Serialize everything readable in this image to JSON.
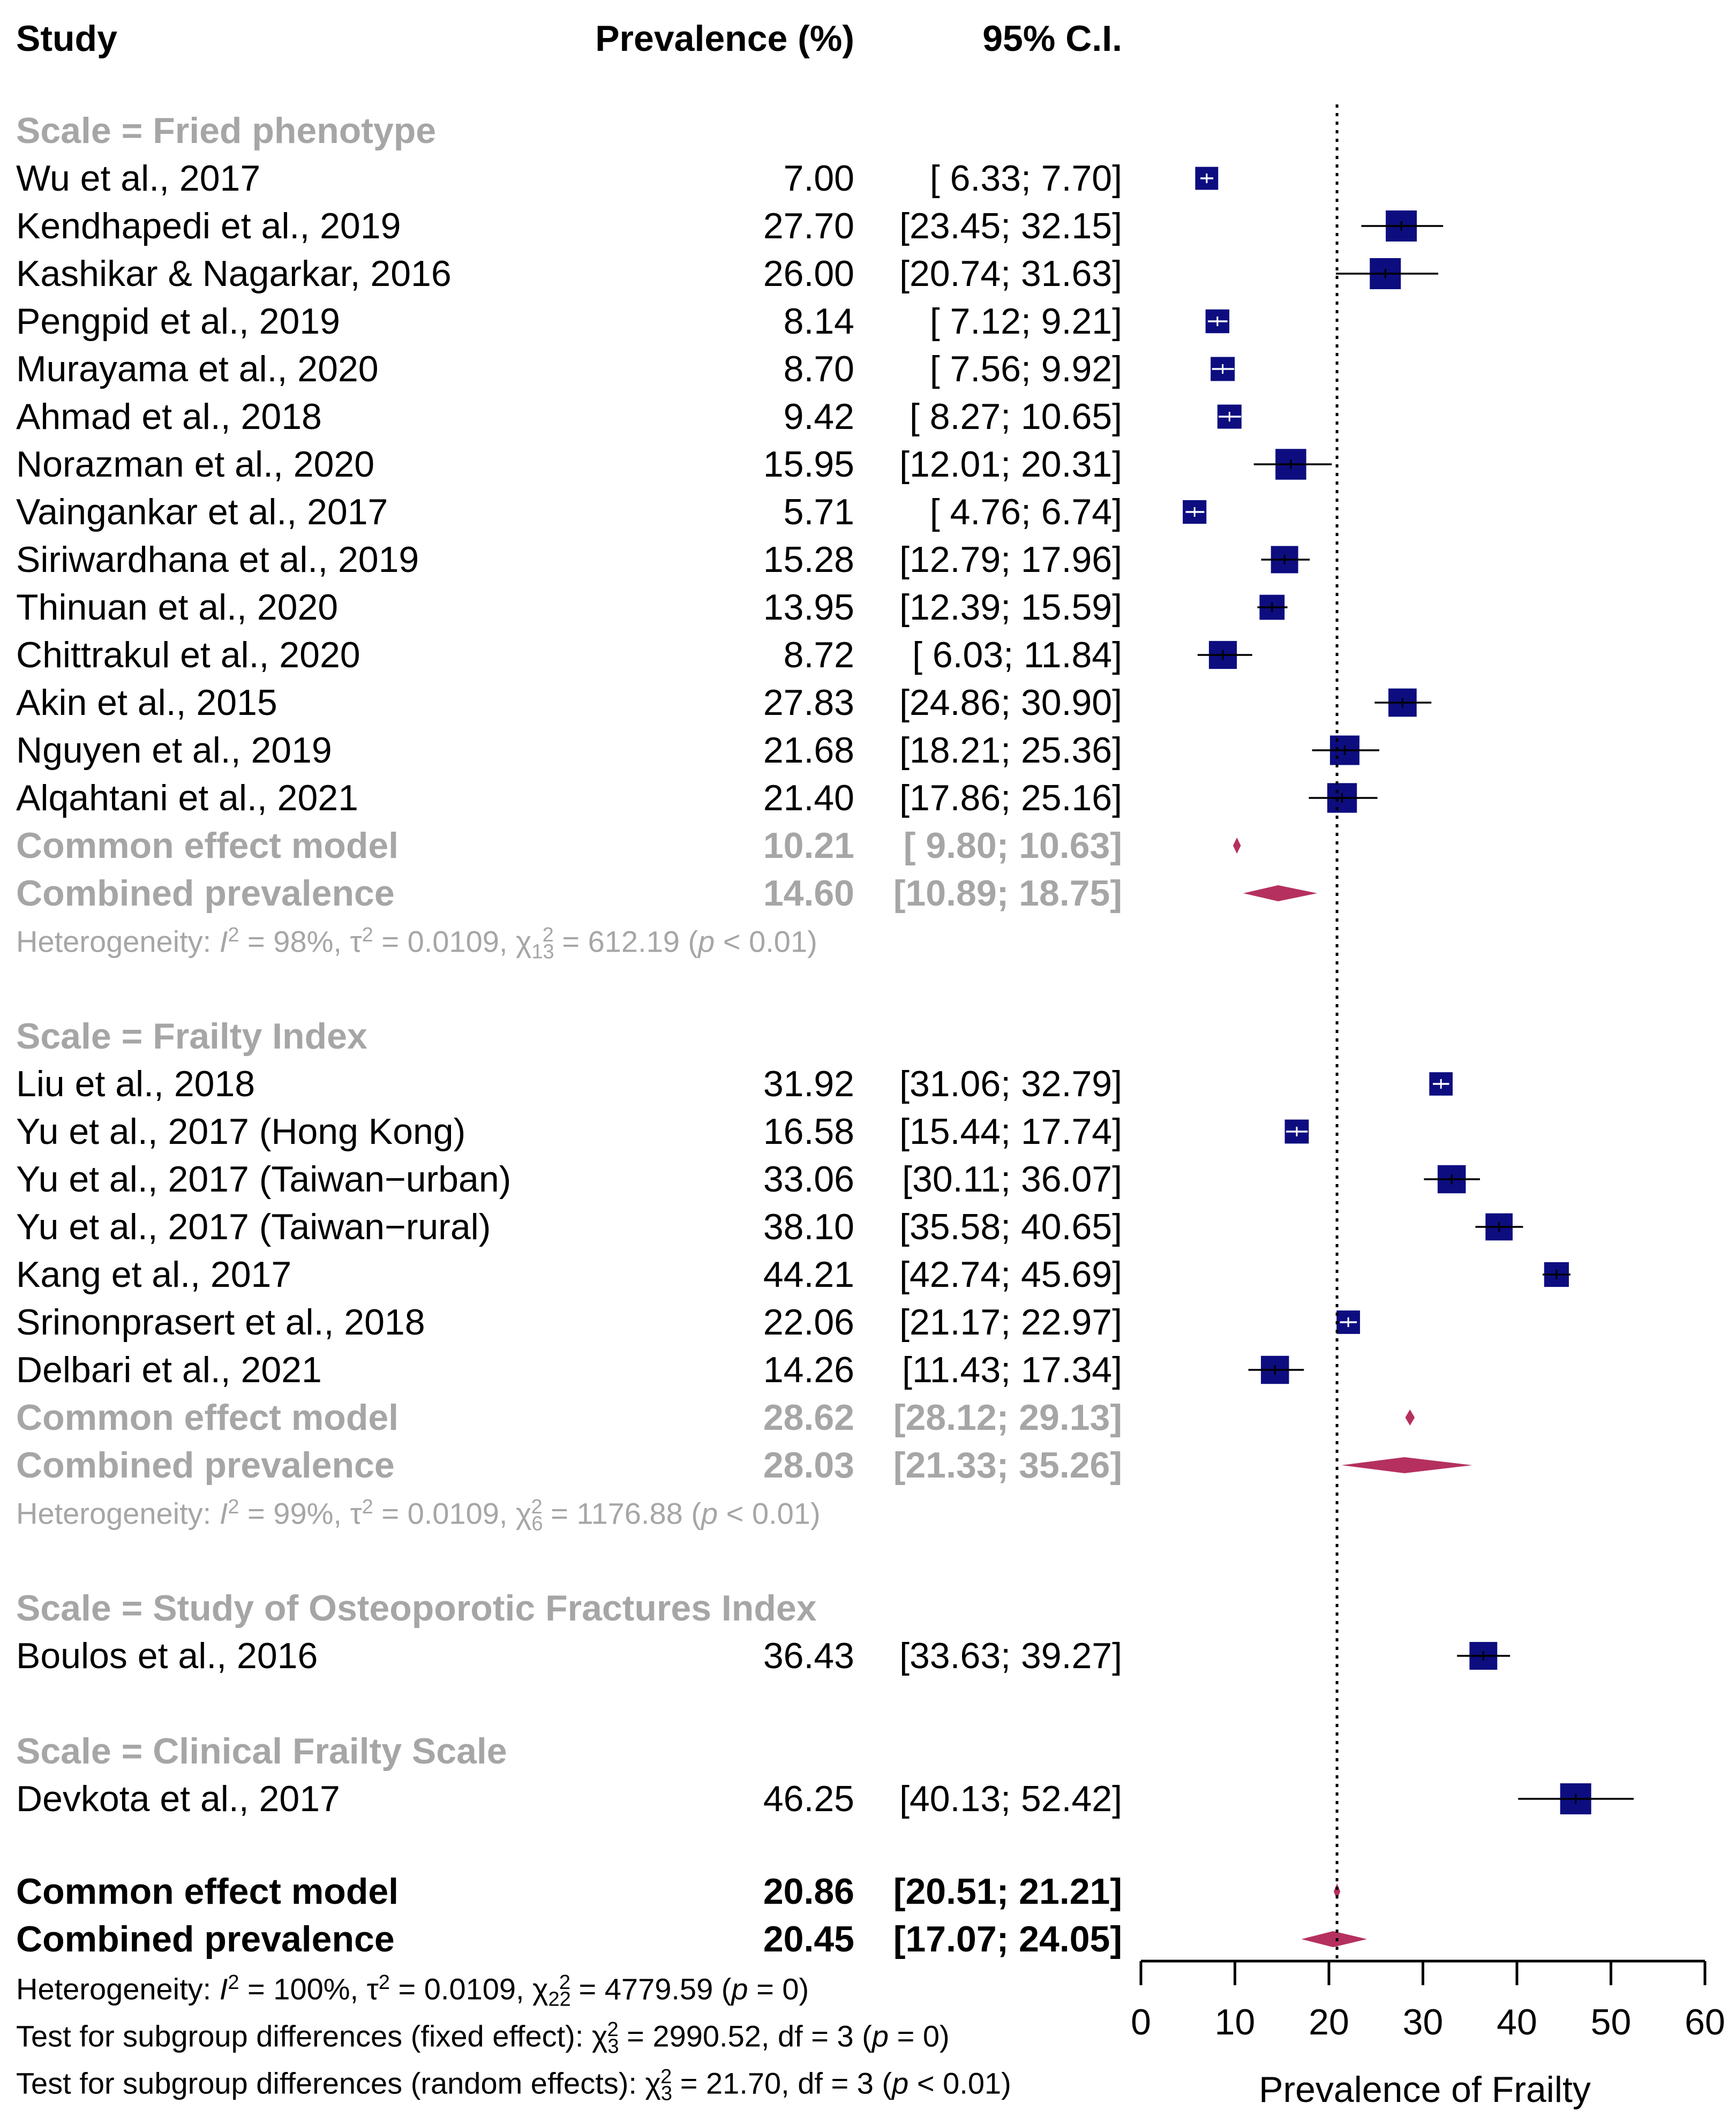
{
  "headers": {
    "study": "Study",
    "prevalence": "Prevalence (%)",
    "ci": "95% C.I."
  },
  "colors": {
    "box": "#0d0d80",
    "diamond": "#b5305f",
    "grey_text": "#a6a6a6",
    "line": "#000000"
  },
  "chart_data": {
    "type": "forest",
    "xlabel": "Prevalence of Frailty",
    "xlim": [
      0,
      60
    ],
    "xticks": [
      0,
      10,
      20,
      30,
      40,
      50,
      60
    ],
    "reference_line": 20.86,
    "groups": [
      {
        "label": "Scale = Fried phenotype",
        "studies": [
          {
            "name": "Wu et al., 2017",
            "est": 7.0,
            "lo": 6.33,
            "hi": 7.7,
            "est_text": "7.00",
            "ci_text": "[ 6.33;  7.70]"
          },
          {
            "name": "Kendhapedi et al., 2019",
            "est": 27.7,
            "lo": 23.45,
            "hi": 32.15,
            "est_text": "27.70",
            "ci_text": "[23.45; 32.15]"
          },
          {
            "name": "Kashikar & Nagarkar, 2016",
            "est": 26.0,
            "lo": 20.74,
            "hi": 31.63,
            "est_text": "26.00",
            "ci_text": "[20.74; 31.63]"
          },
          {
            "name": "Pengpid et al., 2019",
            "est": 8.14,
            "lo": 7.12,
            "hi": 9.21,
            "est_text": "8.14",
            "ci_text": "[ 7.12;  9.21]"
          },
          {
            "name": "Murayama et al., 2020",
            "est": 8.7,
            "lo": 7.56,
            "hi": 9.92,
            "est_text": "8.70",
            "ci_text": "[ 7.56;  9.92]"
          },
          {
            "name": "Ahmad et al., 2018",
            "est": 9.42,
            "lo": 8.27,
            "hi": 10.65,
            "est_text": "9.42",
            "ci_text": "[ 8.27; 10.65]"
          },
          {
            "name": "Norazman et al., 2020",
            "est": 15.95,
            "lo": 12.01,
            "hi": 20.31,
            "est_text": "15.95",
            "ci_text": "[12.01; 20.31]"
          },
          {
            "name": "Vaingankar et al., 2017",
            "est": 5.71,
            "lo": 4.76,
            "hi": 6.74,
            "est_text": "5.71",
            "ci_text": "[ 4.76;  6.74]"
          },
          {
            "name": "Siriwardhana et al., 2019",
            "est": 15.28,
            "lo": 12.79,
            "hi": 17.96,
            "est_text": "15.28",
            "ci_text": "[12.79; 17.96]"
          },
          {
            "name": "Thinuan et al., 2020",
            "est": 13.95,
            "lo": 12.39,
            "hi": 15.59,
            "est_text": "13.95",
            "ci_text": "[12.39; 15.59]"
          },
          {
            "name": "Chittrakul et al., 2020",
            "est": 8.72,
            "lo": 6.03,
            "hi": 11.84,
            "est_text": "8.72",
            "ci_text": "[ 6.03; 11.84]"
          },
          {
            "name": "Akin et al., 2015",
            "est": 27.83,
            "lo": 24.86,
            "hi": 30.9,
            "est_text": "27.83",
            "ci_text": "[24.86; 30.90]"
          },
          {
            "name": "Nguyen et al., 2019",
            "est": 21.68,
            "lo": 18.21,
            "hi": 25.36,
            "est_text": "21.68",
            "ci_text": "[18.21; 25.36]"
          },
          {
            "name": "Alqahtani et al., 2021",
            "est": 21.4,
            "lo": 17.86,
            "hi": 25.16,
            "est_text": "21.40",
            "ci_text": "[17.86; 25.16]"
          }
        ],
        "common": {
          "name": "Common effect model",
          "est": 10.21,
          "lo": 9.8,
          "hi": 10.63,
          "est_text": "10.21",
          "ci_text": "[ 9.80; 10.63]"
        },
        "random": {
          "name": "Combined prevalence",
          "est": 14.6,
          "lo": 10.89,
          "hi": 18.75,
          "est_text": "14.60",
          "ci_text": "[10.89; 18.75]"
        },
        "heterogeneity": {
          "prefix": "Heterogeneity: ",
          "I2": "98%",
          "tau2": "0.0109",
          "df": "13",
          "chi2": "612.19",
          "p": "< 0.01"
        }
      },
      {
        "label": "Scale = Frailty Index",
        "studies": [
          {
            "name": "Liu et al., 2018",
            "est": 31.92,
            "lo": 31.06,
            "hi": 32.79,
            "est_text": "31.92",
            "ci_text": "[31.06; 32.79]"
          },
          {
            "name": "Yu et al., 2017 (Hong Kong)",
            "est": 16.58,
            "lo": 15.44,
            "hi": 17.74,
            "est_text": "16.58",
            "ci_text": "[15.44; 17.74]"
          },
          {
            "name": "Yu et al., 2017 (Taiwan−urban)",
            "est": 33.06,
            "lo": 30.11,
            "hi": 36.07,
            "est_text": "33.06",
            "ci_text": "[30.11; 36.07]"
          },
          {
            "name": "Yu et al., 2017 (Taiwan−rural)",
            "est": 38.1,
            "lo": 35.58,
            "hi": 40.65,
            "est_text": "38.10",
            "ci_text": "[35.58; 40.65]"
          },
          {
            "name": "Kang et al., 2017",
            "est": 44.21,
            "lo": 42.74,
            "hi": 45.69,
            "est_text": "44.21",
            "ci_text": "[42.74; 45.69]"
          },
          {
            "name": "Srinonprasert et al., 2018",
            "est": 22.06,
            "lo": 21.17,
            "hi": 22.97,
            "est_text": "22.06",
            "ci_text": "[21.17; 22.97]"
          },
          {
            "name": "Delbari et al., 2021",
            "est": 14.26,
            "lo": 11.43,
            "hi": 17.34,
            "est_text": "14.26",
            "ci_text": "[11.43; 17.34]"
          }
        ],
        "common": {
          "name": "Common effect model",
          "est": 28.62,
          "lo": 28.12,
          "hi": 29.13,
          "est_text": "28.62",
          "ci_text": "[28.12; 29.13]"
        },
        "random": {
          "name": "Combined prevalence",
          "est": 28.03,
          "lo": 21.33,
          "hi": 35.26,
          "est_text": "28.03",
          "ci_text": "[21.33; 35.26]"
        },
        "heterogeneity": {
          "prefix": "Heterogeneity: ",
          "I2": "99%",
          "tau2": "0.0109",
          "df": "6",
          "chi2": "1176.88",
          "p": "< 0.01"
        }
      },
      {
        "label": "Scale = Study of Osteoporotic Fractures Index",
        "studies": [
          {
            "name": "Boulos et al., 2016",
            "est": 36.43,
            "lo": 33.63,
            "hi": 39.27,
            "est_text": "36.43",
            "ci_text": "[33.63; 39.27]"
          }
        ]
      },
      {
        "label": "Scale = Clinical Frailty Scale",
        "studies": [
          {
            "name": "Devkota et al., 2017",
            "est": 46.25,
            "lo": 40.13,
            "hi": 52.42,
            "est_text": "46.25",
            "ci_text": "[40.13; 52.42]"
          }
        ]
      }
    ],
    "overall": {
      "common": {
        "name": "Common effect model",
        "est": 20.86,
        "lo": 20.51,
        "hi": 21.21,
        "est_text": "20.86",
        "ci_text": "[20.51; 21.21]"
      },
      "random": {
        "name": "Combined prevalence",
        "est": 20.45,
        "lo": 17.07,
        "hi": 24.05,
        "est_text": "20.45",
        "ci_text": "[17.07; 24.05]"
      },
      "heterogeneity": {
        "prefix": "Heterogeneity: ",
        "I2": "100%",
        "tau2": "0.0109",
        "df": "22",
        "chi2": "4779.59",
        "p": "= 0"
      },
      "subgroup_fixed": {
        "prefix": "Test for subgroup differences (fixed effect): ",
        "df": "3",
        "chi2": "2990.52",
        "dftext": "3",
        "p": "= 0"
      },
      "subgroup_random": {
        "prefix": "Test for subgroup differences (random effects): ",
        "df": "3",
        "chi2": "21.70",
        "dftext": "3",
        "p": "< 0.01"
      }
    }
  }
}
